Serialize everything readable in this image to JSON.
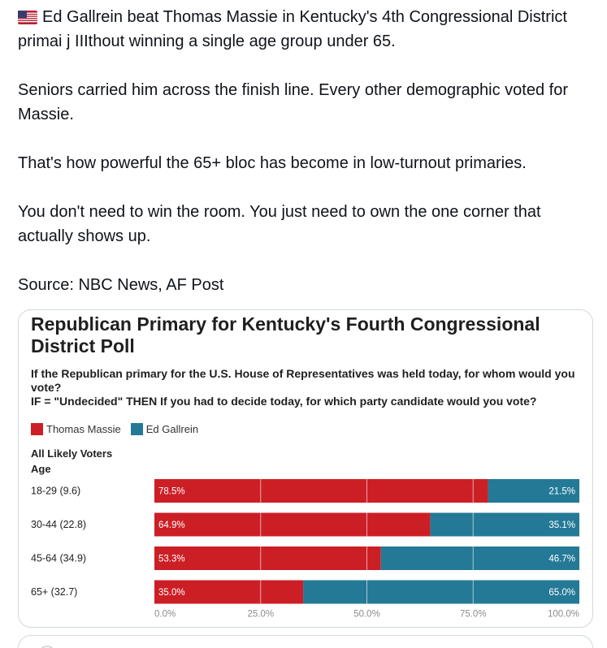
{
  "post": {
    "paragraphs": [
      "Ed Gallrein beat Thomas Massie in Kentucky's 4th Congressional District primai j IIIthout winning a single age group under 65.",
      "Seniors carried him across the finish line. Every other demographic voted for Massie.",
      "That's how powerful the 65+ bloc has become in low-turnout primaries.",
      "You don't need to win the room. You just need to own the one corner that actually shows up.",
      "Source: NBC News, AF Post"
    ],
    "flag_icon": "us-flag-icon"
  },
  "chart_data": {
    "type": "bar",
    "stacked": true,
    "orientation": "horizontal",
    "title": "Republican Primary for Kentucky's Fourth Congressional District Poll",
    "subtitle_lines": [
      "If the Republican primary for the U.S. House of Representatives was held today, for whom would you vote?",
      "IF = \"Undecided\" THEN If you had to decide today, for which party candidate would you vote?"
    ],
    "group_label": "All Likely Voters",
    "group_sublabel": "Age",
    "categories": [
      "18-29 (9.6)",
      "30-44 (22.8)",
      "45-64 (34.9)",
      "65+ (32.7)"
    ],
    "series": [
      {
        "name": "Thomas Massie",
        "color": "#cc1f25",
        "values": [
          78.5,
          64.9,
          53.3,
          35.0
        ]
      },
      {
        "name": "Ed Gallrein",
        "color": "#247a96",
        "values": [
          21.5,
          35.1,
          46.7,
          65.0
        ]
      }
    ],
    "value_labels": [
      [
        "78.5%",
        "64.9%",
        "53.3%",
        "35.0%"
      ],
      [
        "21.5%",
        "35.1%",
        "46.7%",
        "65.0%"
      ]
    ],
    "xlim": [
      0,
      100
    ],
    "x_ticks": [
      "0.0%",
      "25.0%",
      "50.0%",
      "75.0%",
      "100.0%"
    ],
    "gridlines": true,
    "legend_position": "top-left"
  }
}
